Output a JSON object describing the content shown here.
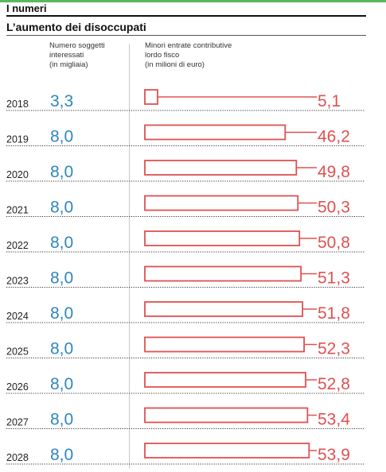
{
  "section_label": "I numeri",
  "chart_title": "L’aumento dei disoccupati",
  "column_headers": {
    "left": "Numero soggetti\ninteressati\n(in migliaia)",
    "right": "Minori entrate contributive\nlordo fisco\n(in milioni di euro)"
  },
  "colors": {
    "accent_green": "#5cb85c",
    "count_text": "#2e86c1",
    "bar_stroke": "#e05050",
    "value_text": "#e05050",
    "dotted_rule": "#333333"
  },
  "chart_data": {
    "type": "bar",
    "orientation": "horizontal",
    "categories": [
      "2018",
      "2019",
      "2020",
      "2021",
      "2022",
      "2023",
      "2024",
      "2025",
      "2026",
      "2027",
      "2028"
    ],
    "series": [
      {
        "name": "Numero soggetti interessati (in migliaia)",
        "values": [
          3.3,
          8.0,
          8.0,
          8.0,
          8.0,
          8.0,
          8.0,
          8.0,
          8.0,
          8.0,
          8.0
        ],
        "labels": [
          "3,3",
          "8,0",
          "8,0",
          "8,0",
          "8,0",
          "8,0",
          "8,0",
          "8,0",
          "8,0",
          "8,0",
          "8,0"
        ]
      },
      {
        "name": "Minori entrate contributive lordo fisco (in milioni di euro)",
        "values": [
          5.1,
          46.2,
          49.8,
          50.3,
          50.8,
          51.3,
          51.8,
          52.3,
          52.8,
          53.4,
          53.9
        ],
        "labels": [
          "5,1",
          "46,2",
          "49,8",
          "50,3",
          "50,8",
          "51,3",
          "51,8",
          "52,3",
          "52,8",
          "53,4",
          "53,9"
        ]
      }
    ]
  }
}
